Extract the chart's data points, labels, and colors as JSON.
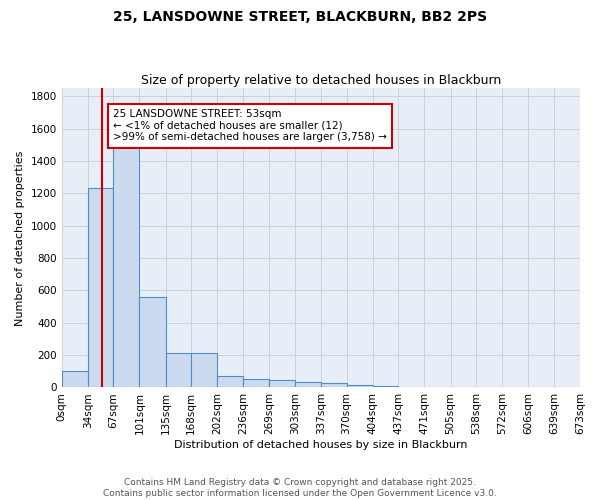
{
  "title": "25, LANSDOWNE STREET, BLACKBURN, BB2 2PS",
  "subtitle": "Size of property relative to detached houses in Blackburn",
  "xlabel": "Distribution of detached houses by size in Blackburn",
  "ylabel": "Number of detached properties",
  "bin_edges": [
    0,
    34,
    67,
    101,
    135,
    168,
    202,
    236,
    269,
    303,
    337,
    370,
    404,
    437,
    471,
    505,
    538,
    572,
    606,
    639,
    673
  ],
  "bar_heights": [
    100,
    1230,
    1640,
    560,
    210,
    210,
    70,
    50,
    45,
    35,
    25,
    15,
    10,
    5,
    5,
    5,
    5,
    5,
    5,
    5
  ],
  "bar_color": "#ccdaf0",
  "bar_edge_color": "#4d8ec4",
  "property_size": 53,
  "property_line_color": "#cc0000",
  "annotation_text": "25 LANSDOWNE STREET: 53sqm\n← <1% of detached houses are smaller (12)\n>99% of semi-detached houses are larger (3,758) →",
  "annotation_box_color": "#ffffff",
  "annotation_box_edge_color": "#cc0000",
  "ylim": [
    0,
    1850
  ],
  "yticks": [
    0,
    200,
    400,
    600,
    800,
    1000,
    1200,
    1400,
    1600,
    1800
  ],
  "background_color": "#e8eef8",
  "grid_color": "#cccccc",
  "fig_background": "#ffffff",
  "footer_line1": "Contains HM Land Registry data © Crown copyright and database right 2025.",
  "footer_line2": "Contains public sector information licensed under the Open Government Licence v3.0.",
  "title_fontsize": 10,
  "subtitle_fontsize": 9,
  "axis_label_fontsize": 8,
  "tick_fontsize": 7.5,
  "annotation_fontsize": 7.5,
  "footer_fontsize": 6.5
}
